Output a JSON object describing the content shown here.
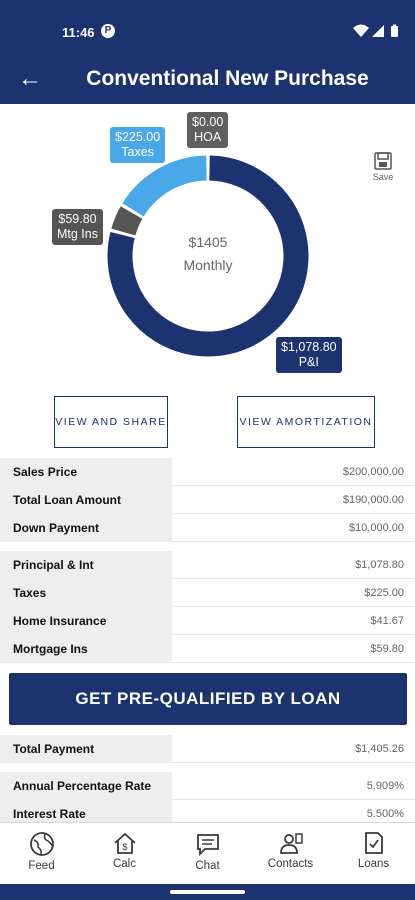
{
  "status": {
    "time": "11:46",
    "notif_glyph": "P"
  },
  "header": {
    "title": "Conventional New Purchase"
  },
  "chart_data": {
    "type": "pie",
    "center_value": "$1405",
    "center_label": "Monthly",
    "slices": [
      {
        "label": "P&I",
        "value": 1078.8,
        "value_text": "$1,078.80",
        "color": "#1c3370"
      },
      {
        "label": "Mtg Ins",
        "value": 59.8,
        "value_text": "$59.80",
        "color": "#555555"
      },
      {
        "label": "Taxes",
        "value": 225.0,
        "value_text": "$225.00",
        "color": "#4aa8e8"
      },
      {
        "label": "HOA",
        "value": 0.0,
        "value_text": "$0.00",
        "color": "#5f5f5f"
      }
    ]
  },
  "save": {
    "label": "Save"
  },
  "buttons": {
    "view_share": "VIEW AND SHARE",
    "view_amort": "VIEW AMORTIZATION"
  },
  "details1": [
    {
      "label": "Sales Price",
      "value": "$200,000.00"
    },
    {
      "label": "Total Loan Amount",
      "value": "$190,000.00"
    },
    {
      "label": "Down Payment",
      "value": "$10,000.00"
    }
  ],
  "details2": [
    {
      "label": "Principal & Int",
      "value": "$1,078.80"
    },
    {
      "label": "Taxes",
      "value": "$225.00"
    },
    {
      "label": "Home Insurance",
      "value": "$41.67"
    },
    {
      "label": "Mortgage Ins",
      "value": "$59.80"
    }
  ],
  "cta": {
    "label": "GET PRE-QUALIFIED BY LOAN"
  },
  "total": {
    "label": "Total Payment",
    "value": "$1,405.26"
  },
  "rates": [
    {
      "label": "Annual Percentage Rate",
      "value": "5.909%"
    },
    {
      "label": "Interest Rate",
      "value": "5.500%"
    }
  ],
  "tabs": [
    {
      "label": "Feed",
      "icon": "globe-icon"
    },
    {
      "label": "Calc",
      "icon": "house-dollar-icon"
    },
    {
      "label": "Chat",
      "icon": "chat-icon"
    },
    {
      "label": "Contacts",
      "icon": "contacts-icon"
    },
    {
      "label": "Loans",
      "icon": "document-check-icon"
    }
  ]
}
